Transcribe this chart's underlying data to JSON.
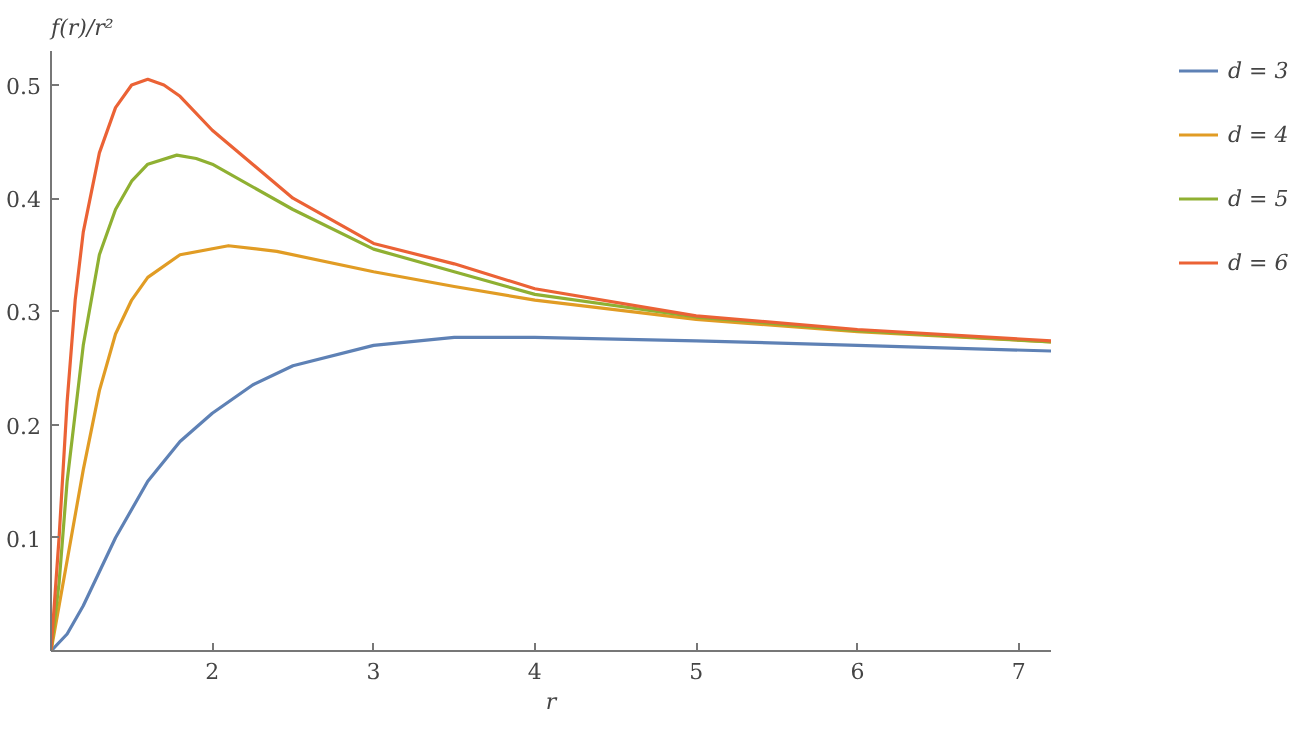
{
  "chart_data": {
    "type": "line",
    "xlabel": "r",
    "ylabel": "f(r)/r²",
    "xlim": [
      1,
      7.2
    ],
    "ylim": [
      0,
      0.53
    ],
    "xticks": [
      2,
      3,
      4,
      5,
      6,
      7
    ],
    "yticks": [
      0.1,
      0.2,
      0.3,
      0.4,
      0.5
    ],
    "grid": false,
    "legend": "right",
    "line_style": "solid",
    "marker": "none",
    "series": [
      {
        "name": "d = 3",
        "color": "#5e81b5",
        "x": [
          1,
          1.1,
          1.2,
          1.3,
          1.4,
          1.6,
          1.8,
          2,
          2.25,
          2.5,
          3,
          3.5,
          4,
          5,
          6,
          7.2
        ],
        "values": [
          0,
          0.015,
          0.04,
          0.07,
          0.1,
          0.15,
          0.185,
          0.21,
          0.235,
          0.252,
          0.27,
          0.277,
          0.277,
          0.274,
          0.27,
          0.265
        ]
      },
      {
        "name": "d = 4",
        "color": "#e19c24",
        "x": [
          1,
          1.1,
          1.2,
          1.3,
          1.4,
          1.5,
          1.6,
          1.8,
          2.1,
          2.4,
          3,
          3.5,
          4,
          5,
          6,
          7.2
        ],
        "values": [
          0,
          0.08,
          0.16,
          0.23,
          0.28,
          0.31,
          0.33,
          0.35,
          0.358,
          0.353,
          0.335,
          0.322,
          0.31,
          0.293,
          0.282,
          0.273
        ]
      },
      {
        "name": "d = 5",
        "color": "#8fb032",
        "x": [
          1,
          1.05,
          1.1,
          1.2,
          1.3,
          1.4,
          1.5,
          1.6,
          1.78,
          1.9,
          2,
          2.5,
          3,
          3.5,
          4,
          5,
          6,
          7.2
        ],
        "values": [
          0,
          0.06,
          0.15,
          0.27,
          0.35,
          0.39,
          0.415,
          0.43,
          0.438,
          0.435,
          0.43,
          0.39,
          0.355,
          0.335,
          0.315,
          0.295,
          0.283,
          0.273
        ]
      },
      {
        "name": "d = 6",
        "color": "#eb6235",
        "x": [
          1,
          1.05,
          1.1,
          1.15,
          1.2,
          1.3,
          1.4,
          1.5,
          1.6,
          1.7,
          1.8,
          2,
          2.25,
          2.5,
          3,
          3.5,
          4,
          5,
          6,
          7.2
        ],
        "values": [
          0,
          0.1,
          0.22,
          0.31,
          0.37,
          0.44,
          0.48,
          0.5,
          0.505,
          0.5,
          0.49,
          0.46,
          0.43,
          0.4,
          0.36,
          0.342,
          0.32,
          0.296,
          0.284,
          0.274
        ]
      }
    ]
  }
}
